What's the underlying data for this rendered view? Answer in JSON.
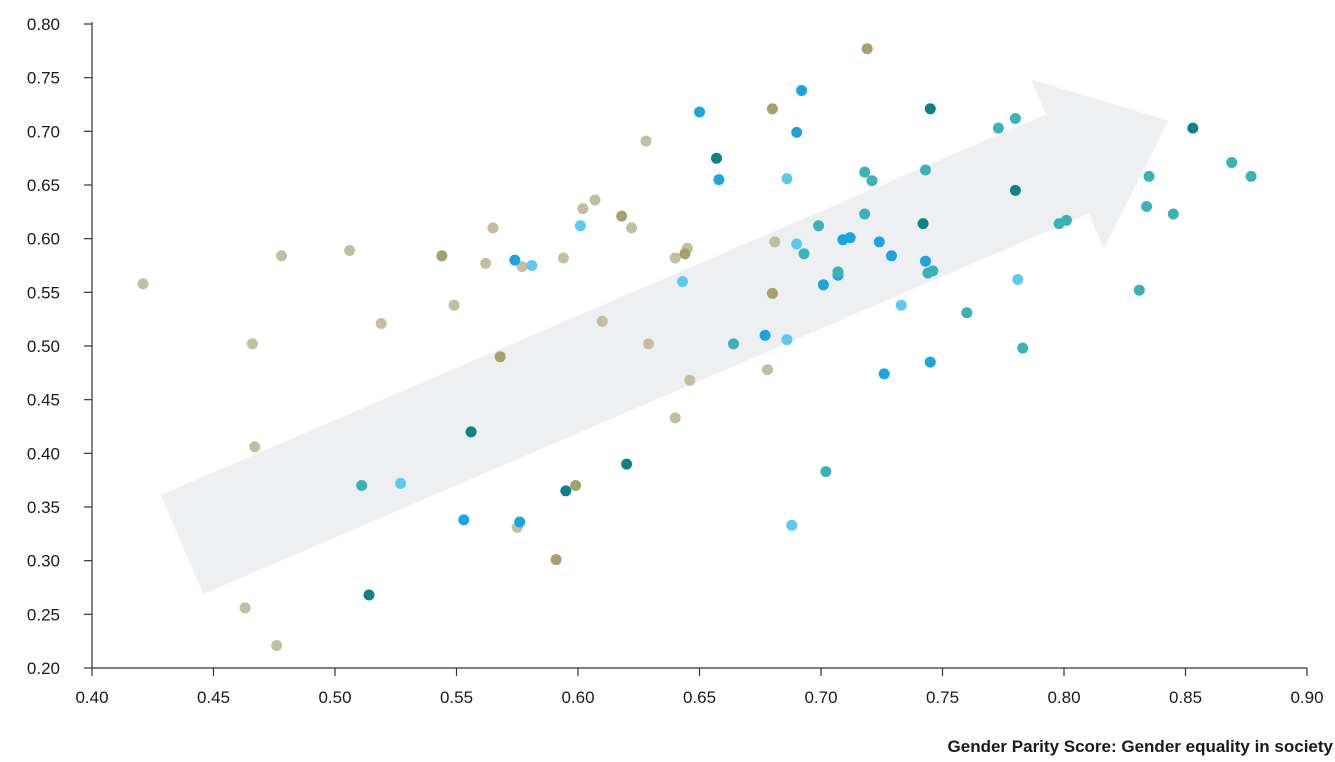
{
  "chart_data": {
    "type": "scatter",
    "title": "",
    "xlabel": "Gender Parity Score: Gender equality in society",
    "ylabel": "",
    "xlim": [
      0.4,
      0.9
    ],
    "ylim": [
      0.2,
      0.8
    ],
    "x_ticks": [
      "0.40",
      "0.45",
      "0.50",
      "0.55",
      "0.60",
      "0.65",
      "0.70",
      "0.75",
      "0.80",
      "0.85",
      "0.90"
    ],
    "y_ticks": [
      "0.20",
      "0.25",
      "0.30",
      "0.35",
      "0.40",
      "0.45",
      "0.50",
      "0.55",
      "0.60",
      "0.65",
      "0.70",
      "0.75",
      "0.80"
    ],
    "grid": false,
    "legend": "none",
    "trend_arrow": {
      "start": [
        0.437,
        0.315
      ],
      "end": [
        0.843,
        0.71
      ],
      "color": "#eeeff1"
    },
    "series": [
      {
        "color": "#c4bea0",
        "points": [
          [
            0.421,
            0.558
          ],
          [
            0.463,
            0.256
          ],
          [
            0.466,
            0.502
          ],
          [
            0.467,
            0.406
          ],
          [
            0.476,
            0.221
          ],
          [
            0.478,
            0.584
          ],
          [
            0.506,
            0.589
          ],
          [
            0.519,
            0.521
          ],
          [
            0.549,
            0.538
          ],
          [
            0.562,
            0.577
          ],
          [
            0.565,
            0.61
          ],
          [
            0.577,
            0.574
          ],
          [
            0.575,
            0.331
          ],
          [
            0.594,
            0.582
          ],
          [
            0.602,
            0.628
          ],
          [
            0.607,
            0.636
          ],
          [
            0.61,
            0.523
          ],
          [
            0.622,
            0.61
          ],
          [
            0.628,
            0.691
          ],
          [
            0.629,
            0.502
          ],
          [
            0.64,
            0.582
          ],
          [
            0.64,
            0.433
          ],
          [
            0.645,
            0.591
          ],
          [
            0.646,
            0.468
          ],
          [
            0.681,
            0.597
          ],
          [
            0.678,
            0.478
          ]
        ]
      },
      {
        "color": "#a89f6e",
        "points": [
          [
            0.544,
            0.584
          ],
          [
            0.568,
            0.49
          ],
          [
            0.591,
            0.301
          ],
          [
            0.599,
            0.37
          ],
          [
            0.618,
            0.621
          ],
          [
            0.644,
            0.586
          ],
          [
            0.68,
            0.721
          ],
          [
            0.68,
            0.549
          ],
          [
            0.719,
            0.777
          ]
        ]
      },
      {
        "color": "#1aa5df",
        "points": [
          [
            0.553,
            0.338
          ],
          [
            0.574,
            0.58
          ],
          [
            0.576,
            0.336
          ],
          [
            0.65,
            0.718
          ],
          [
            0.658,
            0.655
          ],
          [
            0.677,
            0.51
          ],
          [
            0.69,
            0.699
          ],
          [
            0.692,
            0.738
          ],
          [
            0.701,
            0.557
          ],
          [
            0.707,
            0.566
          ],
          [
            0.709,
            0.599
          ],
          [
            0.712,
            0.601
          ],
          [
            0.724,
            0.597
          ],
          [
            0.726,
            0.474
          ],
          [
            0.729,
            0.584
          ],
          [
            0.743,
            0.579
          ],
          [
            0.745,
            0.485
          ]
        ]
      },
      {
        "color": "#5ccaf0",
        "points": [
          [
            0.527,
            0.372
          ],
          [
            0.581,
            0.575
          ],
          [
            0.601,
            0.612
          ],
          [
            0.643,
            0.56
          ],
          [
            0.686,
            0.656
          ],
          [
            0.686,
            0.506
          ],
          [
            0.688,
            0.333
          ],
          [
            0.69,
            0.595
          ],
          [
            0.733,
            0.538
          ],
          [
            0.781,
            0.562
          ]
        ]
      },
      {
        "color": "#38b4b8",
        "points": [
          [
            0.511,
            0.37
          ],
          [
            0.664,
            0.502
          ],
          [
            0.693,
            0.586
          ],
          [
            0.699,
            0.612
          ],
          [
            0.702,
            0.383
          ],
          [
            0.707,
            0.569
          ],
          [
            0.718,
            0.662
          ],
          [
            0.718,
            0.623
          ],
          [
            0.721,
            0.654
          ],
          [
            0.743,
            0.664
          ],
          [
            0.744,
            0.568
          ],
          [
            0.746,
            0.57
          ],
          [
            0.76,
            0.531
          ],
          [
            0.773,
            0.703
          ],
          [
            0.78,
            0.712
          ],
          [
            0.783,
            0.498
          ],
          [
            0.798,
            0.614
          ],
          [
            0.801,
            0.617
          ],
          [
            0.831,
            0.552
          ],
          [
            0.834,
            0.63
          ],
          [
            0.835,
            0.658
          ],
          [
            0.845,
            0.623
          ],
          [
            0.869,
            0.671
          ],
          [
            0.877,
            0.658
          ]
        ]
      },
      {
        "color": "#0f8286",
        "points": [
          [
            0.514,
            0.268
          ],
          [
            0.556,
            0.42
          ],
          [
            0.595,
            0.365
          ],
          [
            0.62,
            0.39
          ],
          [
            0.657,
            0.675
          ],
          [
            0.742,
            0.614
          ],
          [
            0.745,
            0.721
          ],
          [
            0.78,
            0.645
          ],
          [
            0.853,
            0.703
          ]
        ]
      }
    ]
  }
}
